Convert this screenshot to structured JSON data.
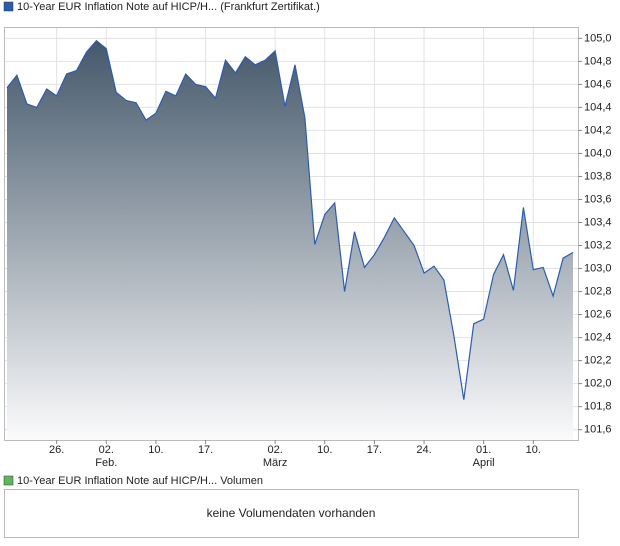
{
  "chart_data": {
    "type": "area",
    "series": [
      {
        "name": "10-Year EUR Inflation Note auf HICP/H... (Frankfurt Zertifikat.)",
        "color": "#2a5db0",
        "values": [
          104.57,
          104.68,
          104.43,
          104.4,
          104.56,
          104.5,
          104.69,
          104.72,
          104.88,
          104.98,
          104.91,
          104.53,
          104.46,
          104.44,
          104.29,
          104.35,
          104.54,
          104.5,
          104.69,
          104.6,
          104.58,
          104.48,
          104.81,
          104.7,
          104.84,
          104.77,
          104.81,
          104.89,
          104.41,
          104.77,
          104.31,
          103.21,
          103.47,
          103.57,
          102.8,
          103.32,
          103.01,
          103.12,
          103.27,
          103.44,
          103.32,
          103.2,
          102.96,
          103.02,
          102.9,
          102.42,
          101.86,
          102.52,
          102.56,
          102.95,
          103.12,
          102.81,
          103.53,
          102.99,
          103.01,
          102.76,
          103.09,
          103.14
        ]
      }
    ],
    "xticks": [
      {
        "value": 5,
        "label": "26."
      },
      {
        "value": 10,
        "label": "02.",
        "month": "Feb."
      },
      {
        "value": 15,
        "label": "10."
      },
      {
        "value": 20,
        "label": "17."
      },
      {
        "value": 27,
        "label": "02.",
        "month": "März"
      },
      {
        "value": 32,
        "label": "10."
      },
      {
        "value": 37,
        "label": "17."
      },
      {
        "value": 42,
        "label": "24."
      },
      {
        "value": 48,
        "label": "01.",
        "month": "April"
      },
      {
        "value": 53,
        "label": "10."
      }
    ],
    "ylim": [
      101.51,
      105.09
    ],
    "yticks": [
      {
        "value": 101.6,
        "label": "101,6"
      },
      {
        "value": 101.8,
        "label": "101,8"
      },
      {
        "value": 102.0,
        "label": "102,0"
      },
      {
        "value": 102.2,
        "label": "102,2"
      },
      {
        "value": 102.4,
        "label": "102,4"
      },
      {
        "value": 102.6,
        "label": "102,6"
      },
      {
        "value": 102.8,
        "label": "102,8"
      },
      {
        "value": 103.0,
        "label": "103,0"
      },
      {
        "value": 103.2,
        "label": "103,2"
      },
      {
        "value": 103.4,
        "label": "103,4"
      },
      {
        "value": 103.6,
        "label": "103,6"
      },
      {
        "value": 103.8,
        "label": "103,8"
      },
      {
        "value": 104.0,
        "label": "104,0"
      },
      {
        "value": 104.2,
        "label": "104,2"
      },
      {
        "value": 104.4,
        "label": "104,4"
      },
      {
        "value": 104.6,
        "label": "104,6"
      },
      {
        "value": 104.8,
        "label": "104,8"
      },
      {
        "value": 105.0,
        "label": "105,0"
      }
    ],
    "grid": true
  },
  "volume_panel": {
    "legend": "10-Year EUR Inflation Note auf HICP/H... Volumen",
    "color": "#5cb85c",
    "message": "keine Volumendaten vorhanden"
  }
}
